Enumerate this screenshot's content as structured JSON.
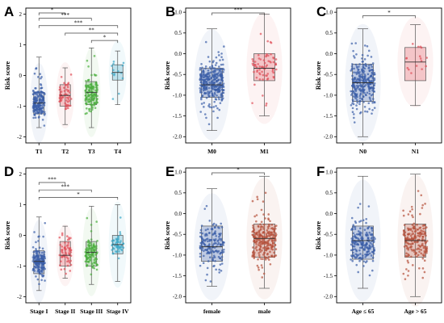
{
  "chart_data": [
    {
      "panel": "A",
      "type": "box",
      "ylabel": "Risk score",
      "ylim": [
        -2.2,
        2.2
      ],
      "yticks": [
        -2,
        -1,
        0,
        1,
        2
      ],
      "categories": [
        "T1",
        "T2",
        "T3",
        "T4"
      ],
      "colors": [
        "#3b5ea8",
        "#e0505a",
        "#4caf3f",
        "#3aa8c8"
      ],
      "boxes": [
        {
          "min": -1.7,
          "q1": -1.25,
          "median": -0.9,
          "q3": -0.55,
          "max": 0.6,
          "n": 180
        },
        {
          "min": -1.6,
          "q1": -1.0,
          "median": -0.65,
          "q3": -0.3,
          "max": 0.25,
          "n": 60
        },
        {
          "min": -1.7,
          "q1": -0.95,
          "median": -0.55,
          "q3": -0.2,
          "max": 0.9,
          "n": 130
        },
        {
          "min": -0.95,
          "q1": -0.15,
          "median": 0.1,
          "q3": 0.35,
          "max": 0.8,
          "n": 14
        }
      ],
      "comparisons": [
        {
          "from": 0,
          "to": 1,
          "label": "*"
        },
        {
          "from": 0,
          "to": 2,
          "label": "***"
        },
        {
          "from": 0,
          "to": 3,
          "label": "***"
        },
        {
          "from": 1,
          "to": 3,
          "label": "**"
        },
        {
          "from": 2,
          "to": 3,
          "label": "*"
        }
      ]
    },
    {
      "panel": "B",
      "type": "box",
      "ylabel": "Risk score",
      "ylim": [
        -2.15,
        1.1
      ],
      "yticks": [
        -2.0,
        -1.5,
        -1.0,
        -0.5,
        0.0,
        0.5,
        1.0
      ],
      "categories": [
        "M0",
        "M1"
      ],
      "colors": [
        "#3b5ea8",
        "#e0505a"
      ],
      "boxes": [
        {
          "min": -1.85,
          "q1": -1.05,
          "median": -0.75,
          "q3": -0.35,
          "max": 0.6,
          "n": 320
        },
        {
          "min": -1.5,
          "q1": -0.65,
          "median": -0.35,
          "q3": 0.0,
          "max": 0.95,
          "n": 70
        }
      ],
      "comparisons": [
        {
          "from": 0,
          "to": 1,
          "label": "***"
        }
      ]
    },
    {
      "panel": "C",
      "type": "box",
      "ylabel": "Risk score",
      "ylim": [
        -2.15,
        1.1
      ],
      "yticks": [
        -2.0,
        -1.5,
        -1.0,
        -0.5,
        0.0,
        0.5,
        1.0
      ],
      "categories": [
        "N0",
        "N1"
      ],
      "colors": [
        "#3b5ea8",
        "#e0505a"
      ],
      "boxes": [
        {
          "min": -2.0,
          "q1": -1.15,
          "median": -0.7,
          "q3": -0.25,
          "max": 0.6,
          "n": 280
        },
        {
          "min": -1.25,
          "q1": -0.65,
          "median": -0.2,
          "q3": 0.15,
          "max": 0.7,
          "n": 16
        }
      ],
      "comparisons": [
        {
          "from": 0,
          "to": 1,
          "label": "*"
        }
      ]
    },
    {
      "panel": "D",
      "type": "box",
      "ylabel": "Risk score",
      "ylim": [
        -2.2,
        2.2
      ],
      "yticks": [
        -2,
        -1,
        0,
        1,
        2
      ],
      "categories": [
        "Stage I",
        "Stage II",
        "Stage III",
        "Stage IV"
      ],
      "colors": [
        "#3b5ea8",
        "#e0505a",
        "#4caf3f",
        "#3aa8c8"
      ],
      "boxes": [
        {
          "min": -1.8,
          "q1": -1.25,
          "median": -0.85,
          "q3": -0.5,
          "max": 0.6,
          "n": 170
        },
        {
          "min": -1.4,
          "q1": -1.0,
          "median": -0.65,
          "q3": -0.2,
          "max": 0.3,
          "n": 60
        },
        {
          "min": -1.6,
          "q1": -1.0,
          "median": -0.55,
          "q3": -0.2,
          "max": 0.95,
          "n": 110
        },
        {
          "min": -1.5,
          "q1": -0.6,
          "median": -0.3,
          "q3": 0.0,
          "max": 1.0,
          "n": 50
        }
      ],
      "comparisons": [
        {
          "from": 0,
          "to": 1,
          "label": "***"
        },
        {
          "from": 0,
          "to": 2,
          "label": "***"
        },
        {
          "from": 0,
          "to": 3,
          "label": "*"
        }
      ]
    },
    {
      "panel": "E",
      "type": "box",
      "ylabel": "Risk score",
      "ylim": [
        -2.15,
        1.1
      ],
      "yticks": [
        -2.0,
        -1.5,
        -1.0,
        -0.5,
        0.0,
        0.5,
        1.0
      ],
      "categories": [
        "female",
        "male"
      ],
      "colors": [
        "#3b5ea8",
        "#b5503a"
      ],
      "boxes": [
        {
          "min": -1.75,
          "q1": -1.15,
          "median": -0.8,
          "q3": -0.3,
          "max": 0.6,
          "n": 170
        },
        {
          "min": -1.8,
          "q1": -1.05,
          "median": -0.6,
          "q3": -0.25,
          "max": 0.9,
          "n": 250
        }
      ],
      "comparisons": [
        {
          "from": 0,
          "to": 1,
          "label": "*"
        }
      ]
    },
    {
      "panel": "F",
      "type": "box",
      "ylabel": "Risk score",
      "ylim": [
        -2.15,
        1.1
      ],
      "yticks": [
        -2.0,
        -1.5,
        -1.0,
        -0.5,
        0.0,
        0.5,
        1.0
      ],
      "categories": [
        "Age ≤ 65",
        "Age > 65"
      ],
      "colors": [
        "#3b5ea8",
        "#b5503a"
      ],
      "boxes": [
        {
          "min": -1.8,
          "q1": -1.1,
          "median": -0.65,
          "q3": -0.3,
          "max": 0.9,
          "n": 200
        },
        {
          "min": -2.0,
          "q1": -1.05,
          "median": -0.65,
          "q3": -0.25,
          "max": 0.95,
          "n": 200
        }
      ],
      "comparisons": []
    }
  ]
}
